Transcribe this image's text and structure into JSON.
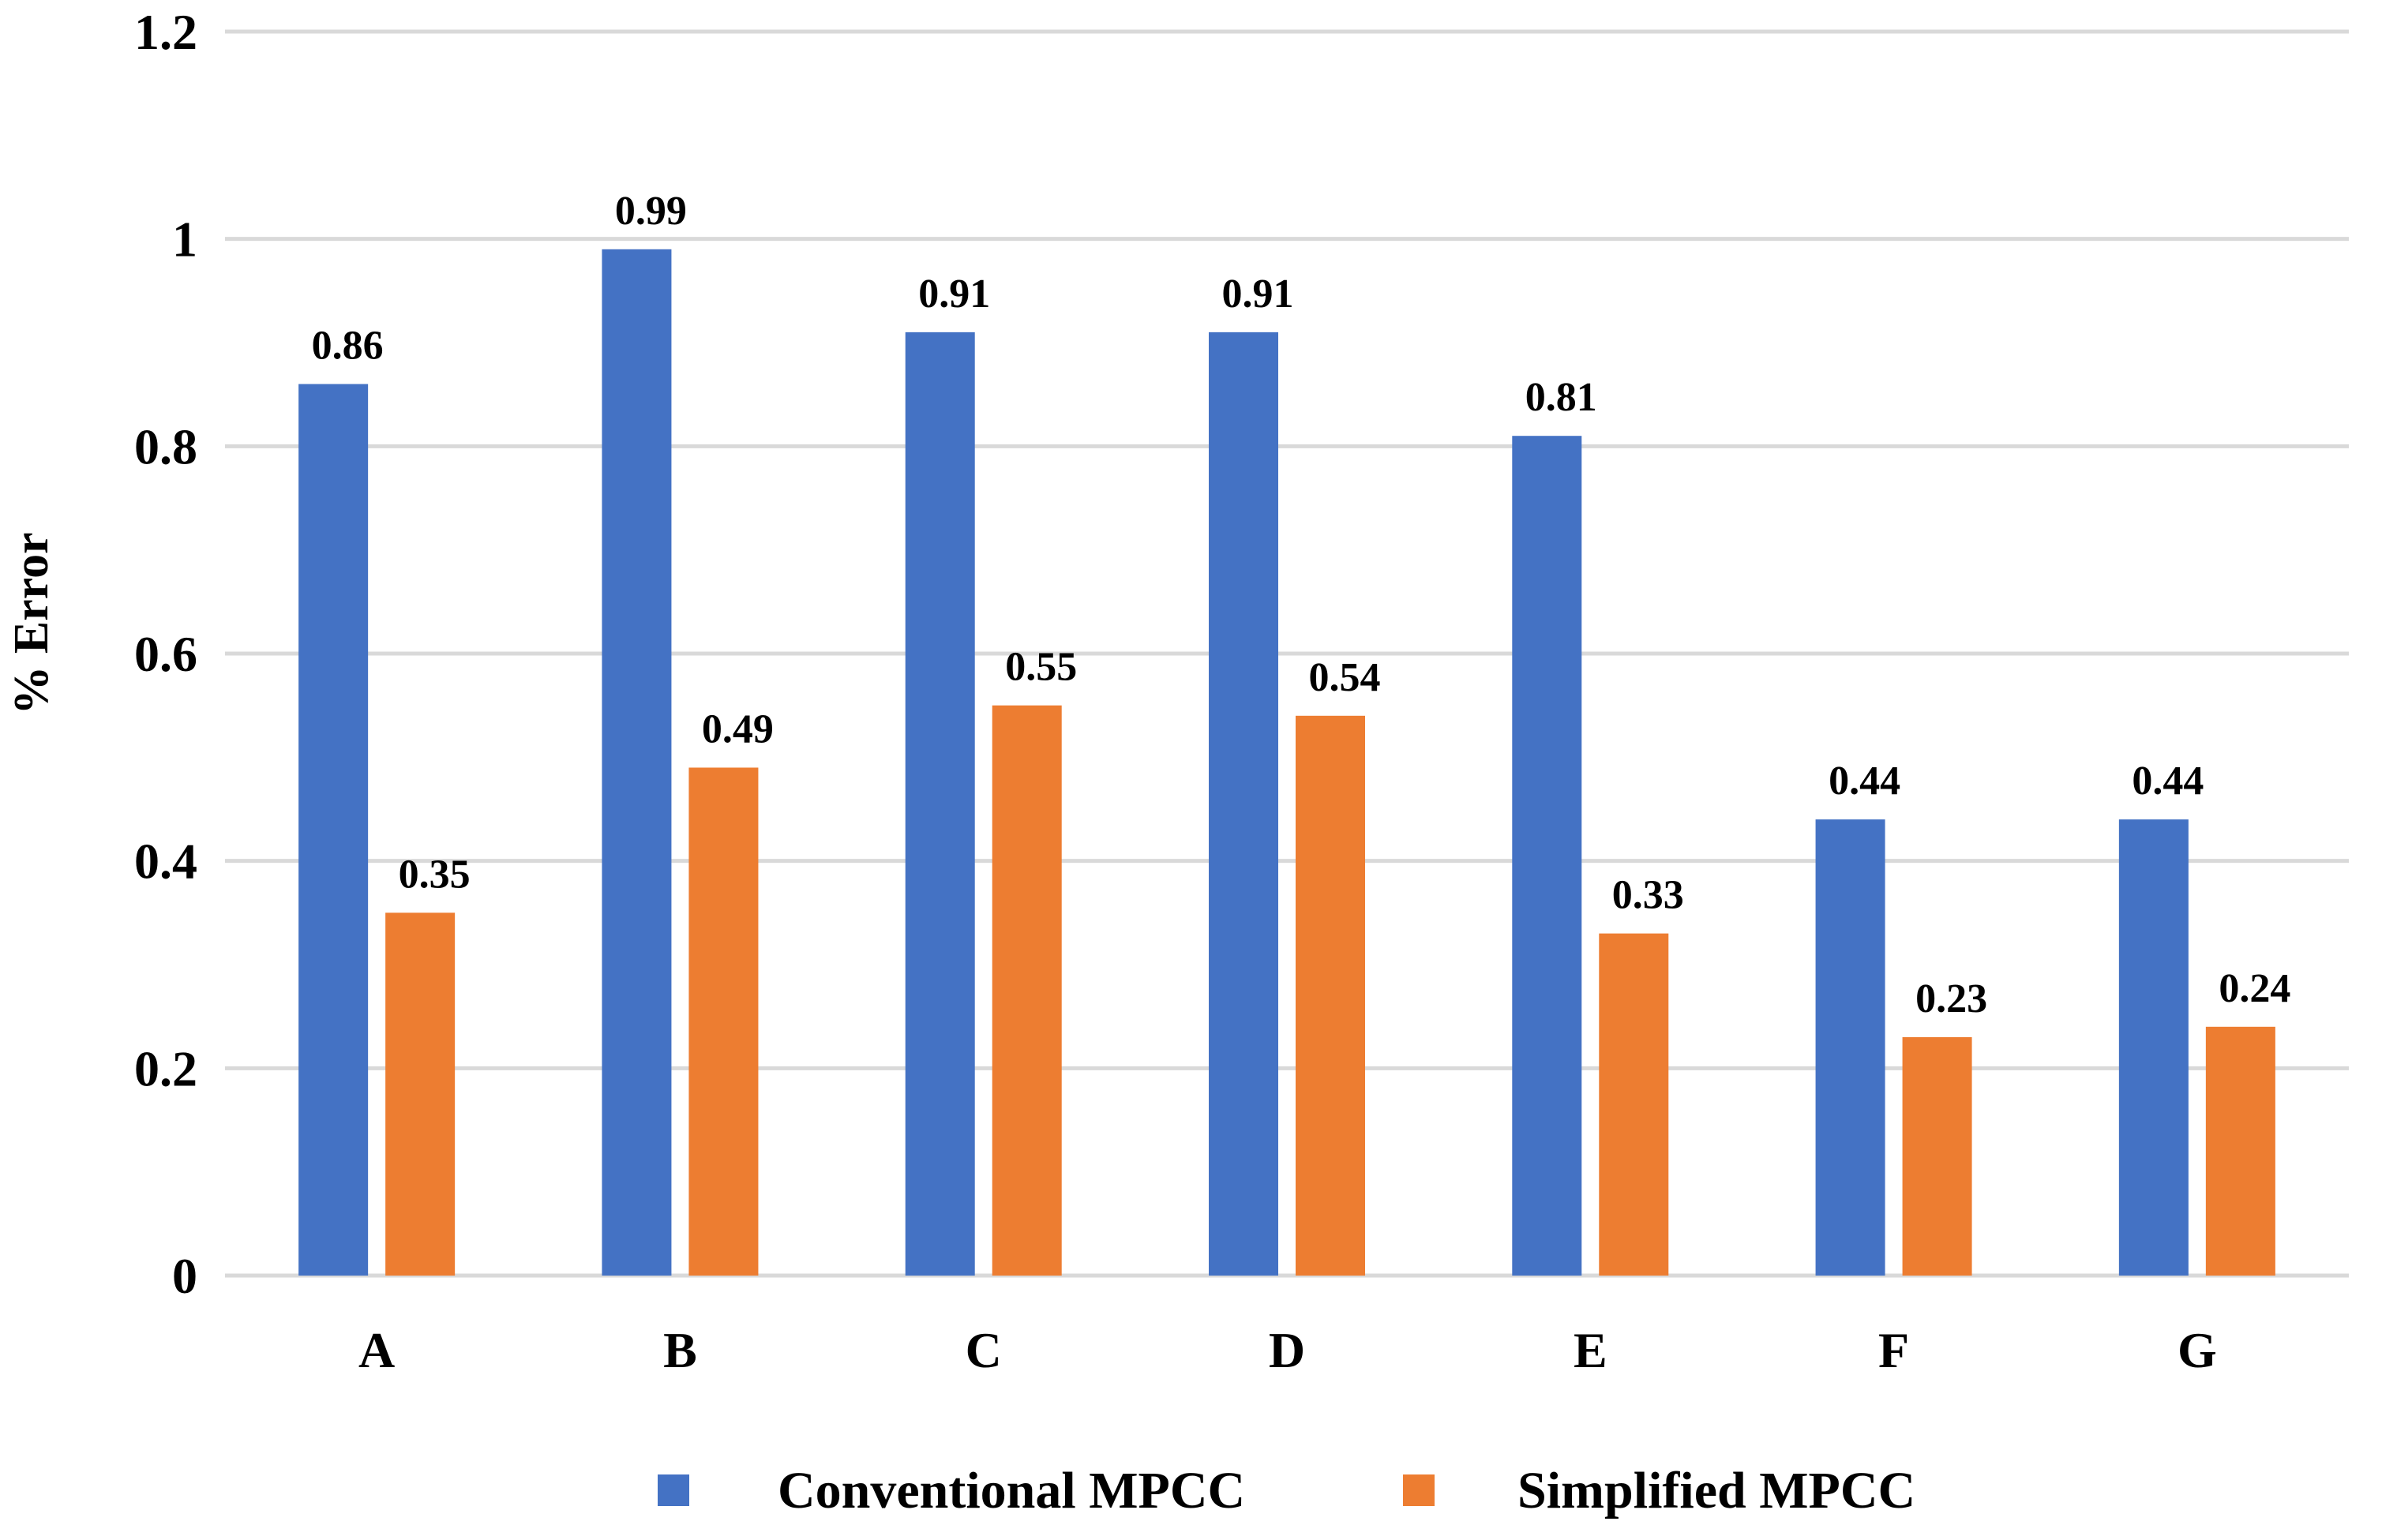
{
  "chart_data": {
    "type": "bar",
    "title": "",
    "xlabel": "",
    "ylabel": "% Error",
    "ylim": [
      0,
      1.2
    ],
    "yticks": [
      0,
      0.2,
      0.4,
      0.6,
      0.8,
      1,
      1.2
    ],
    "ytick_labels": [
      "0",
      "0.2",
      "0.4",
      "0.6",
      "0.8",
      "1",
      "1.2"
    ],
    "grid": "horizontal",
    "legend_position": "bottom",
    "categories": [
      "A",
      "B",
      "C",
      "D",
      "E",
      "F",
      "G"
    ],
    "series": [
      {
        "name": "Conventional MPCC",
        "color": "#4472C4",
        "values": [
          0.86,
          0.99,
          0.91,
          0.91,
          0.81,
          0.44,
          0.44
        ],
        "labels": [
          "0.86",
          "0.99",
          "0.91",
          "0.91",
          "0.81",
          "0.44",
          "0.44"
        ]
      },
      {
        "name": "Simplified MPCC",
        "color": "#ED7D31",
        "values": [
          0.35,
          0.49,
          0.55,
          0.54,
          0.33,
          0.23,
          0.24
        ],
        "labels": [
          "0.35",
          "0.49",
          "0.55",
          "0.54",
          "0.33",
          "0.23",
          "0.24"
        ]
      }
    ]
  }
}
